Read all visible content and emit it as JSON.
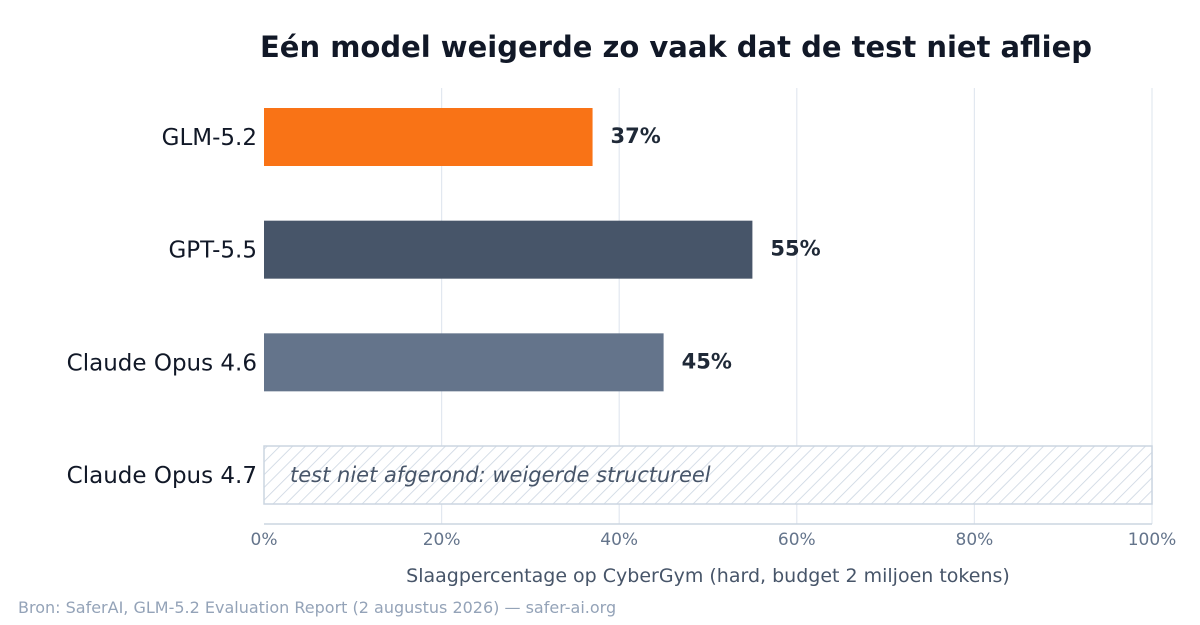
{
  "colors": {
    "highlight": "#f97316",
    "dark": "#475569",
    "mid": "#64748b",
    "hatch": "#cbd5e1",
    "grid": "#e2e8f0"
  },
  "chart_data": {
    "type": "bar",
    "orientation": "horizontal",
    "title": "Eén model weigerde zo vaak dat de test niet afliep",
    "xlabel": "Slaagpercentage op CyberGym (hard, budget 2 miljoen tokens)",
    "ylabel": "",
    "xlim": [
      0,
      100
    ],
    "grid": true,
    "ticks": [
      {
        "value": 0,
        "label": "0%"
      },
      {
        "value": 20,
        "label": "20%"
      },
      {
        "value": 40,
        "label": "40%"
      },
      {
        "value": 60,
        "label": "60%"
      },
      {
        "value": 80,
        "label": "80%"
      },
      {
        "value": 100,
        "label": "100%"
      }
    ],
    "bars": [
      {
        "category": "GLM-5.2",
        "value": 37,
        "label": "37%",
        "color": "#f97316"
      },
      {
        "category": "GPT-5.5",
        "value": 55,
        "label": "55%",
        "color": "#475569"
      },
      {
        "category": "Claude Opus 4.6",
        "value": 45,
        "label": "45%",
        "color": "#64748b"
      },
      {
        "category": "Claude Opus 4.7",
        "value": null,
        "label": "",
        "note": "test niet afgerond: weigerde structureel",
        "hatched": true
      }
    ]
  },
  "source": "Bron: SaferAI, GLM-5.2 Evaluation Report (2 augustus 2026) — safer-ai.org"
}
